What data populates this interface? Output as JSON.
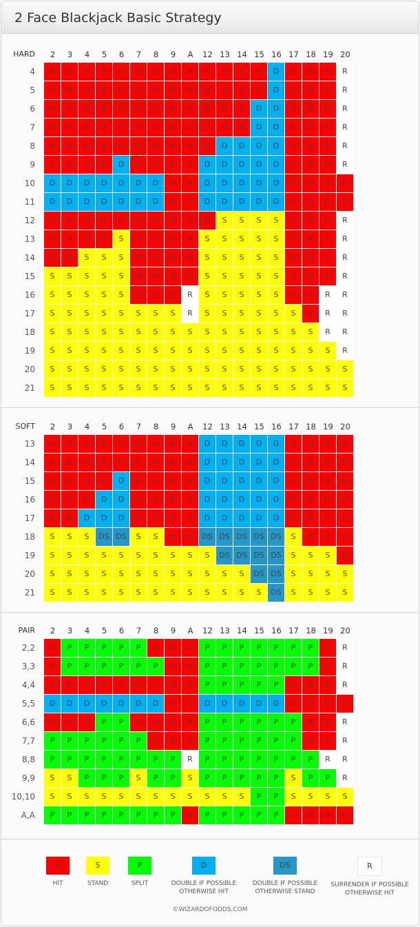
{
  "title": "2 Face Blackjack Basic Strategy",
  "columns": [
    "2",
    "3",
    "4",
    "5",
    "6",
    "7",
    "8",
    "9",
    "A",
    "12",
    "13",
    "14",
    "15",
    "16",
    "17",
    "18",
    "19",
    "20"
  ],
  "colors": {
    "H": "#ff0000",
    "S": "#ffff00",
    "P": "#00ff00",
    "D": "#00b0f0",
    "DS": "#2496c8",
    "R": "#ffffff"
  },
  "sections": [
    {
      "label": "HARD",
      "rows": [
        {
          "label": "4",
          "cells": "H H H H H H H H H H H H H D H H H R"
        },
        {
          "label": "5",
          "cells": "H H H H H H H H H H H H H D H H H R"
        },
        {
          "label": "6",
          "cells": "H H H H H H H H H H H H D D H H H R"
        },
        {
          "label": "7",
          "cells": "H H H H H H H H H H H H D D H H H R"
        },
        {
          "label": "8",
          "cells": "H H H H H H H H H H D D D D H H H R"
        },
        {
          "label": "9",
          "cells": "H H H H D H H H H D D D D D H H H R"
        },
        {
          "label": "10",
          "cells": "D D D D D D D H H D D D D D H H H H"
        },
        {
          "label": "11",
          "cells": "D D D D D D D H H D D D D D H H H H"
        },
        {
          "label": "12",
          "cells": "H H H H H H H H H H S S S S H H H R"
        },
        {
          "label": "13",
          "cells": "H H H H S H H H H S S S S S H H H R"
        },
        {
          "label": "14",
          "cells": "H H S S S H H H H S S S S S H H H R"
        },
        {
          "label": "15",
          "cells": "S S S S S H H H H S S S S S H H H R"
        },
        {
          "label": "16",
          "cells": "S S S S S H H H R S S S S S H H R R"
        },
        {
          "label": "17",
          "cells": "S S S S S S S S R S S S S S S H R R"
        },
        {
          "label": "18",
          "cells": "S S S S S S S S S S S S S S S S R R"
        },
        {
          "label": "19",
          "cells": "S S S S S S S S S S S S S S S S S R"
        },
        {
          "label": "20",
          "cells": "S S S S S S S S S S S S S S S S S S"
        },
        {
          "label": "21",
          "cells": "S S S S S S S S S S S S S S S S S S"
        }
      ]
    },
    {
      "label": "SOFT",
      "rows": [
        {
          "label": "13",
          "cells": "H H H H H H H H H D D D D D H H H H"
        },
        {
          "label": "14",
          "cells": "H H H H H H H H H D D D D D H H H H"
        },
        {
          "label": "15",
          "cells": "H H H H D H H H H D D D D D H H H H"
        },
        {
          "label": "16",
          "cells": "H H H D D H H H H D D D D D H H H H"
        },
        {
          "label": "17",
          "cells": "H H D D D H H H H D D D D D H H H H"
        },
        {
          "label": "18",
          "cells": "S S S DS DS S S H H DS DS DS DS DS S H H H"
        },
        {
          "label": "19",
          "cells": "S S S S S S S S S S DS DS DS DS S S S H"
        },
        {
          "label": "20",
          "cells": "S S S S S S S S S S S S DS DS S S S S"
        },
        {
          "label": "21",
          "cells": "S S S S S S S S S S S S S DS S S S S"
        }
      ]
    },
    {
      "label": "PAIR",
      "rows": [
        {
          "label": "2,2",
          "cells": "H P P P P P H H H P P P P P P P H R"
        },
        {
          "label": "3,3",
          "cells": "H P P P P P P H H P P P P P P P H R"
        },
        {
          "label": "4,4",
          "cells": "H H H H H H H H H P P P P P H H H R"
        },
        {
          "label": "5,5",
          "cells": "D D D D D D D H H D D D D D H H H H"
        },
        {
          "label": "6,6",
          "cells": "H H H P P H H H H P P P P P P H H R"
        },
        {
          "label": "7,7",
          "cells": "P P P P P P H H H P P P P P P H H R"
        },
        {
          "label": "8,8",
          "cells": "P P P P P P P P R P P P P P P P R R"
        },
        {
          "label": "9,9",
          "cells": "S S P P P S P P S P P P P P S P P R"
        },
        {
          "label": "10,10",
          "cells": "S S S S S S S S S S S S P P S S S S"
        },
        {
          "label": "A,A",
          "cells": "P P P P P P P P H P P P P P H H H H"
        }
      ]
    }
  ],
  "legend": [
    {
      "code": "H",
      "line1": "HIT",
      "line2": ""
    },
    {
      "code": "S",
      "line1": "STAND",
      "line2": ""
    },
    {
      "code": "P",
      "line1": "SPLIT",
      "line2": ""
    },
    {
      "code": "D",
      "line1": "DOUBLE IF POSSIBLE",
      "line2": "OTHERWISE HIT"
    },
    {
      "code": "DS",
      "line1": "DOUBLE IF POSSIBLE",
      "line2": "OTHERWISE STAND"
    },
    {
      "code": "R",
      "line1": "SURRENDER IF POSSIBLE",
      "line2": "OTHERWISE HIT"
    }
  ],
  "copyright": "©WIZARDOFODDS.COM"
}
